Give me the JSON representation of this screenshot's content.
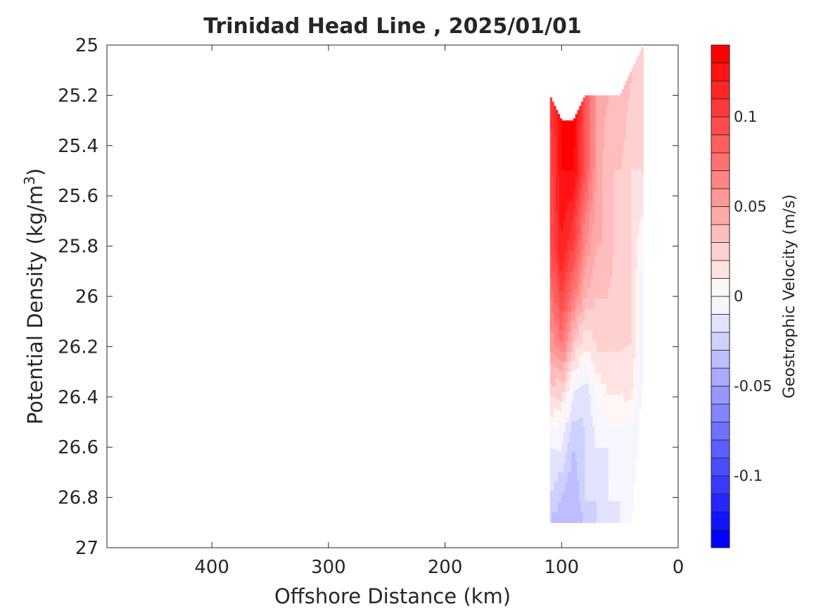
{
  "chart_data": {
    "type": "heatmap",
    "title": "Trinidad Head Line , 2025/01/01",
    "xlabel": "Offshore Distance (km)",
    "ylabel_main": "Potential Density (kg/m",
    "ylabel_sup": "3",
    "ylabel_close": ")",
    "xlim": [
      490,
      0
    ],
    "ylim": [
      25,
      27
    ],
    "x_reversed": true,
    "y_reversed": true,
    "xticks": [
      400,
      300,
      200,
      100,
      0
    ],
    "xtick_labels": [
      "400",
      "300",
      "200",
      "100",
      "0"
    ],
    "yticks": [
      25,
      25.2,
      25.4,
      25.6,
      25.8,
      26,
      26.2,
      26.4,
      26.6,
      26.8,
      27
    ],
    "ytick_labels": [
      "25",
      "25.2",
      "25.4",
      "25.6",
      "25.8",
      "26",
      "26.2",
      "26.4",
      "26.6",
      "26.8",
      "27"
    ],
    "colorbar": {
      "label": "Geostrophic Velocity (m/s)",
      "range": [
        -0.14,
        0.14
      ],
      "levels": 28,
      "ticks": [
        0.1,
        0.05,
        0,
        -0.05,
        -0.1
      ],
      "tick_labels": [
        "0.1",
        "0.05",
        "0",
        "-0.05",
        "-0.1"
      ],
      "positive_color": "#ff0000",
      "negative_color": "#0000ff",
      "zero_color": "#ffffff"
    },
    "sections": [
      {
        "x": 110,
        "top": 25.2,
        "bottom": 26.9,
        "values": [
          [
            25.3,
            0.1
          ],
          [
            25.5,
            0.09
          ],
          [
            25.8,
            0.09
          ],
          [
            26.0,
            0.07
          ],
          [
            26.2,
            0.05
          ],
          [
            26.4,
            0.02
          ],
          [
            26.6,
            -0.01
          ],
          [
            26.8,
            -0.02
          ],
          [
            26.9,
            -0.03
          ]
        ]
      },
      {
        "x": 100,
        "top": 25.3,
        "bottom": 26.9,
        "values": [
          [
            25.3,
            0.13
          ],
          [
            25.5,
            0.13
          ],
          [
            25.8,
            0.12
          ],
          [
            26.0,
            0.1
          ],
          [
            26.2,
            0.07
          ],
          [
            26.35,
            0.03
          ],
          [
            26.5,
            0.0
          ],
          [
            26.7,
            -0.02
          ],
          [
            26.9,
            -0.04
          ]
        ]
      },
      {
        "x": 90,
        "top": 25.3,
        "bottom": 26.9,
        "values": [
          [
            25.3,
            0.14
          ],
          [
            25.5,
            0.13
          ],
          [
            25.8,
            0.1
          ],
          [
            26.0,
            0.07
          ],
          [
            26.2,
            0.03
          ],
          [
            26.4,
            -0.01
          ],
          [
            26.6,
            -0.03
          ],
          [
            26.8,
            -0.04
          ],
          [
            26.9,
            -0.04
          ]
        ]
      },
      {
        "x": 80,
        "top": 25.2,
        "bottom": 26.9,
        "values": [
          [
            25.2,
            0.09
          ],
          [
            25.5,
            0.09
          ],
          [
            25.8,
            0.06
          ],
          [
            26.0,
            0.04
          ],
          [
            26.2,
            0.01
          ],
          [
            26.4,
            -0.02
          ],
          [
            26.6,
            -0.02
          ],
          [
            26.8,
            -0.02
          ],
          [
            26.9,
            -0.03
          ]
        ]
      },
      {
        "x": 70,
        "top": 25.2,
        "bottom": 26.9,
        "values": [
          [
            25.2,
            0.05
          ],
          [
            25.5,
            0.05
          ],
          [
            25.8,
            0.04
          ],
          [
            26.0,
            0.03
          ],
          [
            26.2,
            0.02
          ],
          [
            26.4,
            0.0
          ],
          [
            26.6,
            -0.01
          ],
          [
            26.8,
            -0.02
          ],
          [
            26.9,
            -0.02
          ]
        ]
      },
      {
        "x": 60,
        "top": 25.2,
        "bottom": 26.9,
        "values": [
          [
            25.2,
            0.04
          ],
          [
            25.5,
            0.03
          ],
          [
            25.8,
            0.04
          ],
          [
            26.0,
            0.03
          ],
          [
            26.2,
            0.02
          ],
          [
            26.4,
            0.01
          ],
          [
            26.6,
            -0.01
          ],
          [
            26.8,
            -0.01
          ],
          [
            26.9,
            -0.02
          ]
        ]
      },
      {
        "x": 50,
        "top": 25.2,
        "bottom": 26.9,
        "values": [
          [
            25.2,
            0.04
          ],
          [
            25.5,
            0.03
          ],
          [
            25.8,
            0.02
          ],
          [
            26.0,
            0.02
          ],
          [
            26.2,
            0.02
          ],
          [
            26.4,
            0.01
          ],
          [
            26.6,
            -0.01
          ],
          [
            26.8,
            -0.01
          ],
          [
            26.9,
            -0.01
          ]
        ]
      },
      {
        "x": 40,
        "top": 25.1,
        "bottom": 26.9,
        "values": [
          [
            25.1,
            0.03
          ],
          [
            25.5,
            0.02
          ],
          [
            25.8,
            0.02
          ],
          [
            26.0,
            0.02
          ],
          [
            26.2,
            0.02
          ],
          [
            26.4,
            0.01
          ],
          [
            26.6,
            -0.01
          ],
          [
            26.8,
            -0.01
          ],
          [
            26.9,
            -0.01
          ]
        ]
      },
      {
        "x": 30,
        "top": 25.0,
        "bottom": 26.3,
        "values": [
          [
            25.0,
            0.03
          ],
          [
            25.5,
            0.02
          ],
          [
            25.8,
            0.0
          ],
          [
            26.0,
            -0.01
          ],
          [
            26.2,
            -0.01
          ],
          [
            26.3,
            -0.01
          ]
        ]
      }
    ]
  }
}
